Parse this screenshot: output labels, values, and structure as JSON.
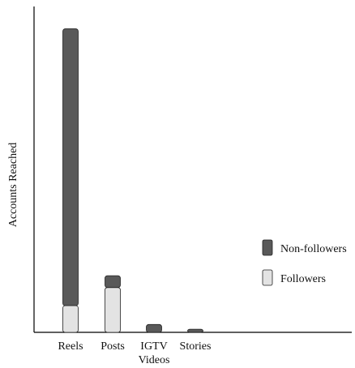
{
  "chart_data": {
    "type": "bar",
    "stacked": true,
    "title": "",
    "xlabel": "",
    "ylabel": "Accounts Reached",
    "categories": [
      "Reels",
      "Posts",
      "IGTV\nVideos",
      "Stories"
    ],
    "series": [
      {
        "name": "Followers",
        "values": [
          34,
          57,
          0,
          0
        ],
        "color": "#e3e3e3"
      },
      {
        "name": "Non-followers",
        "values": [
          352,
          15,
          10,
          4
        ],
        "color": "#595959"
      }
    ],
    "ylim": [
      0,
      400
    ],
    "y_ticks_shown": false,
    "grid": false,
    "legend": {
      "position": "right",
      "order": [
        "Non-followers",
        "Followers"
      ]
    }
  }
}
